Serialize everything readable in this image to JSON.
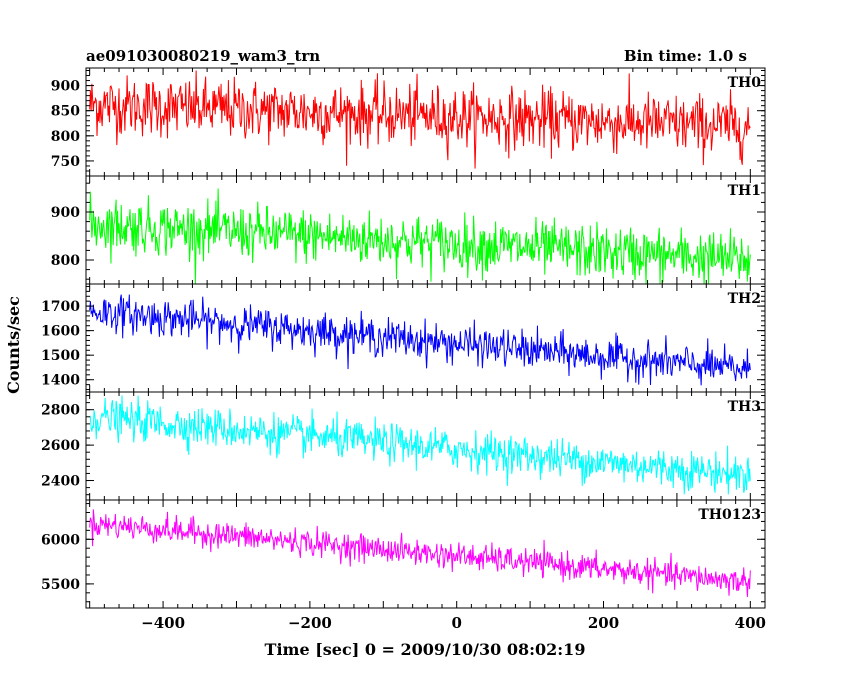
{
  "title_left": "ae091030080219_wam3_trn",
  "title_right": "Bin time: 1.0 s",
  "chart_data": {
    "type": "line",
    "xlabel": "Time [sec] 0 = 2009/10/30 08:02:19",
    "ylabel": "Counts/sec",
    "xlim": [
      -505,
      420
    ],
    "x_data_range": [
      -500,
      400
    ],
    "x_step": 1,
    "x_ticks": [
      -400,
      -200,
      0,
      200,
      400
    ],
    "x_tick_labels": [
      "−400",
      "−200",
      "0",
      "200",
      "400"
    ],
    "panels": [
      {
        "name": "TH0",
        "color": "#ff0000",
        "ylim": [
          720,
          935
        ],
        "yticks": [
          750,
          800,
          850,
          900
        ],
        "ytick_labels": [
          "750",
          "800",
          "850",
          "900"
        ],
        "start_mean": 862,
        "end_mean": 818,
        "noise": 30
      },
      {
        "name": "TH1",
        "color": "#00ff00",
        "ylim": [
          750,
          975
        ],
        "yticks": [
          800,
          900
        ],
        "ytick_labels": [
          "800",
          "900"
        ],
        "start_mean": 875,
        "end_mean": 800,
        "noise": 28
      },
      {
        "name": "TH2",
        "color": "#0000ff",
        "ylim": [
          1350,
          1790
        ],
        "yticks": [
          1400,
          1500,
          1600,
          1700
        ],
        "ytick_labels": [
          "1400",
          "1500",
          "1600",
          "1700"
        ],
        "start_mean": 1680,
        "end_mean": 1440,
        "noise": 38
      },
      {
        "name": "TH3",
        "color": "#00ffff",
        "ylim": [
          2290,
          2900
        ],
        "yticks": [
          2400,
          2600,
          2800
        ],
        "ytick_labels": [
          "2400",
          "2600",
          "2800"
        ],
        "start_mean": 2760,
        "end_mean": 2430,
        "noise": 55
      },
      {
        "name": "TH0123",
        "color": "#ff00ff",
        "ylim": [
          5230,
          6440
        ],
        "yticks": [
          5500,
          6000
        ],
        "ytick_labels": [
          "5500",
          "6000"
        ],
        "start_mean": 6180,
        "end_mean": 5520,
        "noise": 75
      }
    ]
  }
}
